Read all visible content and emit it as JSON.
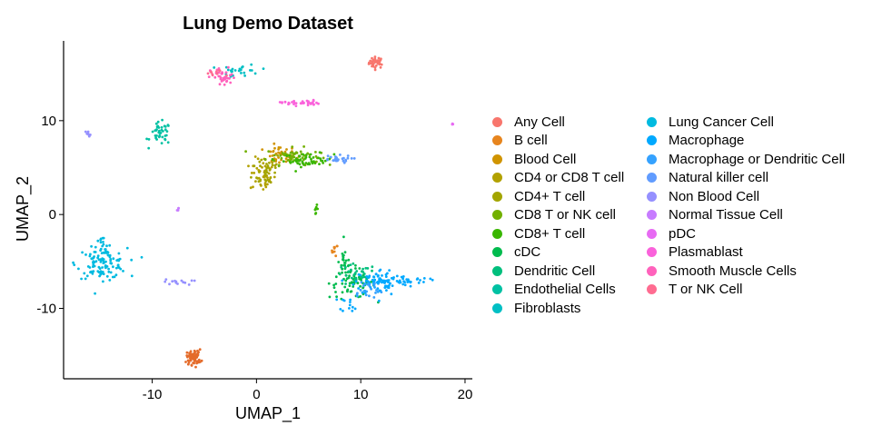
{
  "chart_data": {
    "type": "scatter",
    "title": "Lung Demo Dataset",
    "xlabel": "UMAP_1",
    "ylabel": "UMAP_2",
    "xlim": [
      -18.5,
      20.7
    ],
    "ylim": [
      -17.5,
      18.5
    ],
    "xticks": [
      -10,
      0,
      10,
      20
    ],
    "yticks": [
      -10,
      0,
      10
    ],
    "legend_position": "right",
    "grid": false,
    "series": [
      {
        "name": "Any Cell",
        "color": "#F8766D",
        "clusters": [
          {
            "cx": 11.5,
            "cy": 16.2,
            "sx": 0.35,
            "sy": 0.3,
            "n": 40
          }
        ]
      },
      {
        "name": "B cell",
        "color": "#E7851E",
        "clusters": [
          {
            "cx": 7.5,
            "cy": -3.8,
            "sx": 0.15,
            "sy": 0.3,
            "n": 10
          }
        ]
      },
      {
        "name": "Blood Cell",
        "color": "#D09400",
        "clusters": [
          {
            "cx": 2.2,
            "cy": 6.3,
            "sx": 0.8,
            "sy": 0.5,
            "n": 40
          }
        ]
      },
      {
        "name": "CD4 or CD8 T cell",
        "color": "#B2A100",
        "clusters": [
          {
            "cx": 0.6,
            "cy": 4.2,
            "sx": 0.6,
            "sy": 0.9,
            "n": 45
          }
        ]
      },
      {
        "name": "CD4+ T cell",
        "color": "#A3A500",
        "clusters": [
          {
            "cx": 1.0,
            "cy": 4.8,
            "sx": 0.7,
            "sy": 1.0,
            "n": 35
          }
        ]
      },
      {
        "name": "CD8 T or NK cell",
        "color": "#72B000",
        "clusters": [
          {
            "cx": 3.5,
            "cy": 6.2,
            "sx": 1.3,
            "sy": 0.45,
            "n": 60
          }
        ]
      },
      {
        "name": "CD8+ T cell",
        "color": "#39B600",
        "clusters": [
          {
            "cx": 5.0,
            "cy": 5.8,
            "sx": 1.2,
            "sy": 0.35,
            "n": 50
          },
          {
            "cx": 5.7,
            "cy": 0.6,
            "sx": 0.1,
            "sy": 0.2,
            "n": 8
          }
        ]
      },
      {
        "name": "cDC",
        "color": "#00BB4E",
        "clusters": [
          {
            "cx": 9.2,
            "cy": -7.3,
            "sx": 1.1,
            "sy": 0.8,
            "n": 70
          },
          {
            "cx": 8.5,
            "cy": -5.0,
            "sx": 0.3,
            "sy": 0.8,
            "n": 20
          }
        ]
      },
      {
        "name": "Dendritic Cell",
        "color": "#00BF7D",
        "clusters": [
          {
            "cx": 9.5,
            "cy": -6.5,
            "sx": 1.0,
            "sy": 0.6,
            "n": 30
          }
        ]
      },
      {
        "name": "Endothelial Cells",
        "color": "#00C1A3",
        "clusters": [
          {
            "cx": -9.2,
            "cy": 8.6,
            "sx": 0.5,
            "sy": 0.6,
            "n": 40
          }
        ]
      },
      {
        "name": "Fibroblasts",
        "color": "#00BFC4",
        "clusters": [
          {
            "cx": -1.5,
            "cy": 15.3,
            "sx": 0.9,
            "sy": 0.35,
            "n": 25
          }
        ]
      },
      {
        "name": "Lung Cancer Cell",
        "color": "#00BAE0",
        "clusters": [
          {
            "cx": -14.8,
            "cy": -5.2,
            "sx": 1.2,
            "sy": 0.8,
            "n": 110
          },
          {
            "cx": -14.8,
            "cy": -3.5,
            "sx": 0.3,
            "sy": 0.6,
            "n": 15
          }
        ]
      },
      {
        "name": "Macrophage",
        "color": "#00A9FF",
        "clusters": [
          {
            "cx": 12.0,
            "cy": -7.2,
            "sx": 1.3,
            "sy": 0.7,
            "n": 90
          },
          {
            "cx": 14.5,
            "cy": -7.0,
            "sx": 1.0,
            "sy": 0.2,
            "n": 25
          },
          {
            "cx": 9.0,
            "cy": -9.5,
            "sx": 0.5,
            "sy": 0.4,
            "n": 12
          }
        ]
      },
      {
        "name": "Macrophage or Dendritic Cell",
        "color": "#35A2FF",
        "clusters": [
          {
            "cx": 10.5,
            "cy": -8.0,
            "sx": 0.8,
            "sy": 0.6,
            "n": 25
          }
        ]
      },
      {
        "name": "Natural killer cell",
        "color": "#619CFF",
        "clusters": [
          {
            "cx": 7.5,
            "cy": 5.9,
            "sx": 0.8,
            "sy": 0.2,
            "n": 25
          }
        ]
      },
      {
        "name": "Non Blood Cell",
        "color": "#9590FF",
        "clusters": [
          {
            "cx": -16.2,
            "cy": 8.6,
            "sx": 0.15,
            "sy": 0.15,
            "n": 8
          },
          {
            "cx": -7.5,
            "cy": -7.2,
            "sx": 0.7,
            "sy": 0.15,
            "n": 14
          }
        ]
      },
      {
        "name": "Normal Tissue Cell",
        "color": "#C77CFF",
        "clusters": [
          {
            "cx": -7.6,
            "cy": 0.6,
            "sx": 0.1,
            "sy": 0.1,
            "n": 5
          }
        ]
      },
      {
        "name": "pDC",
        "color": "#E76BF3",
        "clusters": [
          {
            "cx": 18.8,
            "cy": 9.6,
            "sx": 0.05,
            "sy": 0.05,
            "n": 3
          }
        ]
      },
      {
        "name": "Plasmablast",
        "color": "#FA62DB",
        "clusters": [
          {
            "cx": 4.2,
            "cy": 11.9,
            "sx": 0.9,
            "sy": 0.15,
            "n": 35
          }
        ]
      },
      {
        "name": "Smooth Muscle Cells",
        "color": "#FF62BC",
        "clusters": [
          {
            "cx": -3.2,
            "cy": 14.6,
            "sx": 0.6,
            "sy": 0.5,
            "n": 40
          }
        ]
      },
      {
        "name": "T or NK Cell",
        "color": "#FF6C91",
        "clusters": [
          {
            "cx": -4.0,
            "cy": 15.0,
            "sx": 0.5,
            "sy": 0.2,
            "n": 10
          }
        ]
      }
    ],
    "extra_clusters": [
      {
        "color": "#E46B2A",
        "cx": -6.0,
        "cy": -15.2,
        "sx": 0.35,
        "sy": 0.4,
        "n": 70
      }
    ]
  }
}
